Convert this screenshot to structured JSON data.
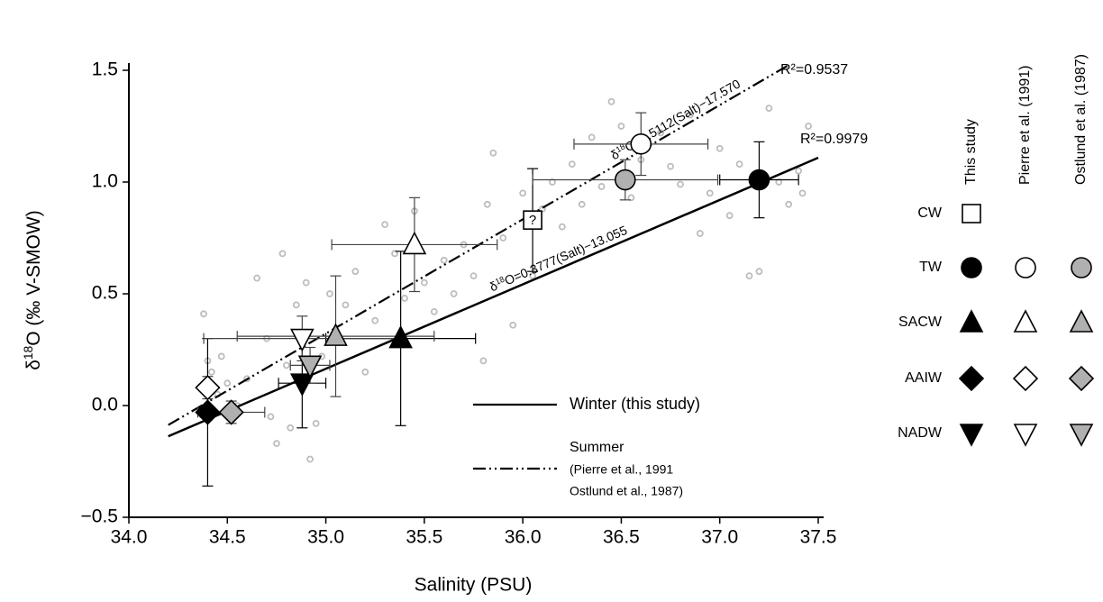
{
  "chart_data": {
    "type": "scatter",
    "x_label": "Salinity (PSU)",
    "y_label": [
      "δ",
      "18",
      "O (‰ V-SMOW)"
    ],
    "xlim": [
      34.0,
      37.5
    ],
    "xticks": [
      {
        "value": 34.0,
        "label": "34.0"
      },
      34.5,
      {
        "value": 35.0,
        "label": "35.0"
      },
      35.5,
      {
        "value": 36.0,
        "label": "36.0"
      },
      36.5,
      {
        "value": 37.0,
        "label": "37.0"
      },
      37.5
    ],
    "ylim": [
      -0.5,
      1.5
    ],
    "yticks": [
      {
        "value": -0.5,
        "label": "−0.5"
      },
      {
        "value": 0,
        "label": "0.0"
      },
      0.5,
      {
        "value": 1,
        "label": "1.0"
      },
      1.5
    ],
    "categories": [
      "CW",
      "TW",
      "SACW",
      "AAIW",
      "NADW"
    ],
    "markers": [
      "square",
      "circle",
      "triangle-up",
      "diamond",
      "triangle-down"
    ],
    "series": [
      {
        "name": "This study",
        "color": "#000000",
        "x": [
          36.05,
          37.2,
          35.38,
          34.4,
          34.88
        ],
        "values": [
          0.83,
          1.01,
          0.3,
          -0.03,
          0.1
        ],
        "xerr": [
          0,
          0.2,
          0.38,
          0,
          0.12
        ],
        "yerr": [
          0.23,
          0.17,
          0.39,
          0.33,
          0.2
        ],
        "point_labels": [
          "?",
          null,
          null,
          null,
          null
        ]
      },
      {
        "name": "Pierre et al. (1991)",
        "color": "#ffffff",
        "x": [
          null,
          36.6,
          35.45,
          34.4,
          34.88
        ],
        "values": [
          null,
          1.17,
          0.72,
          0.08,
          0.3
        ],
        "xerr": [
          null,
          0.34,
          0.42,
          0,
          0.5
        ],
        "yerr": [
          null,
          0.14,
          0.21,
          0.05,
          0.1
        ]
      },
      {
        "name": "Ostlund et al. (1987)",
        "color": "#b0b0b0",
        "x": [
          null,
          36.52,
          35.05,
          34.52,
          34.92
        ],
        "values": [
          null,
          1.01,
          0.31,
          -0.03,
          0.18
        ],
        "xerr": [
          null,
          0.47,
          0.5,
          0.17,
          0.1
        ],
        "yerr": [
          null,
          0.09,
          0.27,
          0.05,
          0.08
        ]
      }
    ],
    "background": {
      "color": "#bdbdbd",
      "x": [
        34.38,
        34.4,
        34.42,
        34.45,
        34.47,
        34.5,
        34.55,
        34.6,
        34.65,
        34.7,
        34.72,
        34.75,
        34.78,
        34.8,
        34.82,
        34.85,
        34.9,
        34.92,
        34.95,
        34.98,
        35.02,
        35.1,
        35.15,
        35.2,
        35.25,
        35.3,
        35.35,
        35.4,
        35.45,
        35.5,
        35.55,
        35.6,
        35.65,
        35.7,
        35.75,
        35.8,
        35.82,
        35.85,
        35.9,
        35.95,
        36.0,
        36.05,
        36.1,
        36.15,
        36.2,
        36.25,
        36.3,
        36.35,
        36.4,
        36.45,
        36.5,
        36.55,
        36.6,
        36.7,
        36.75,
        36.8,
        36.85,
        36.9,
        36.95,
        37.0,
        37.05,
        37.1,
        37.15,
        37.2,
        37.25,
        37.3,
        37.35,
        37.4,
        37.45,
        37.42
      ],
      "values": [
        0.41,
        0.2,
        0.15,
        0.05,
        0.22,
        0.1,
        0.0,
        0.12,
        0.57,
        0.3,
        -0.05,
        -0.17,
        0.68,
        0.18,
        -0.1,
        0.45,
        0.55,
        -0.24,
        -0.08,
        0.22,
        0.5,
        0.45,
        0.6,
        0.15,
        0.38,
        0.81,
        0.68,
        0.48,
        0.87,
        0.55,
        0.42,
        0.65,
        0.5,
        0.72,
        0.58,
        0.2,
        0.9,
        1.13,
        0.75,
        0.36,
        0.95,
        0.58,
        0.88,
        1.0,
        0.8,
        1.08,
        0.9,
        1.2,
        0.98,
        1.36,
        1.25,
        0.93,
        1.1,
        1.22,
        1.07,
        0.99,
        1.3,
        0.77,
        0.95,
        1.15,
        0.85,
        1.08,
        0.58,
        0.6,
        1.33,
        1.0,
        0.9,
        1.05,
        1.25,
        0.95
      ]
    },
    "lines": [
      {
        "name": "Winter (this study)",
        "dash": "solid",
        "slope": 0.3777,
        "intercept": -13.055,
        "x": [
          34.2,
          37.5
        ],
        "equation": [
          "δ",
          "18",
          "O=0.3777(Salt)−13.055"
        ],
        "r2_label": "R²=0.9979"
      },
      {
        "name": "Summer",
        "name_lines": [
          "(Pierre et al., 1991",
          "Ostlund et al., 1987)"
        ],
        "dash": "dashdotdot",
        "slope": 0.5112,
        "intercept": -17.57,
        "x": [
          34.2,
          37.35
        ],
        "equation": [
          "δ",
          "18",
          "O=0.5112(Salt)−17.570"
        ],
        "r2_label": "R²=0.9537"
      }
    ]
  }
}
